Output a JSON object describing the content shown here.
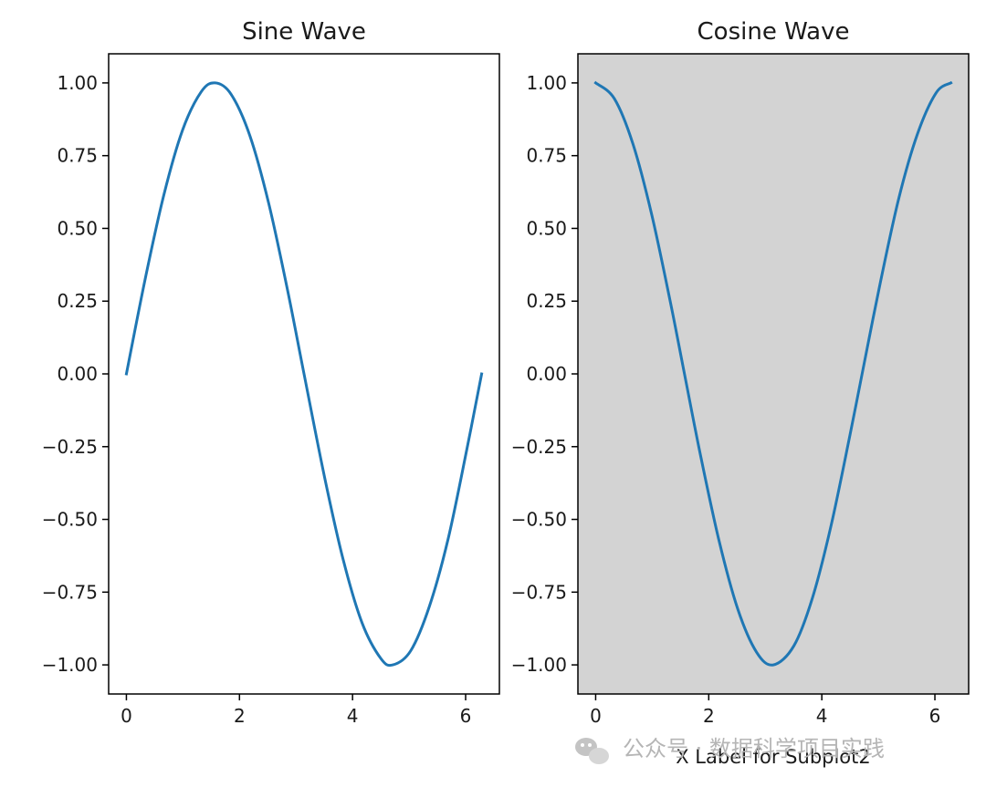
{
  "chart_data": [
    {
      "type": "line",
      "title": "Sine Wave",
      "xlabel": "",
      "ylabel": "",
      "xlim": [
        -0.314,
        6.597
      ],
      "ylim": [
        -1.1,
        1.1
      ],
      "x_ticks": [
        0,
        2,
        4,
        6
      ],
      "x_tick_labels": [
        "0",
        "2",
        "4",
        "6"
      ],
      "y_ticks": [
        1.0,
        0.75,
        0.5,
        0.25,
        0.0,
        -0.25,
        -0.5,
        -0.75,
        -1.0
      ],
      "y_tick_labels": [
        "1.00",
        "0.75",
        "0.50",
        "0.25",
        "0.00",
        "−0.25",
        "−0.50",
        "−0.75",
        "−1.00"
      ],
      "series": [
        {
          "line_color": "#1f77b4",
          "x": [
            0,
            0.3307,
            0.6614,
            0.9921,
            1.3228,
            1.5708,
            1.8535,
            2.1842,
            2.5149,
            2.8456,
            3.1416,
            3.507,
            3.8377,
            4.1684,
            4.4991,
            4.7124,
            5.0298,
            5.3605,
            5.6912,
            6.0219,
            6.2832
          ],
          "y": [
            0,
            0.3247,
            0.6142,
            0.8372,
            0.9694,
            1.0,
            0.9604,
            0.8183,
            0.5878,
            0.2924,
            0.0,
            -0.3569,
            -0.6409,
            -0.8558,
            -0.9779,
            -1.0,
            -0.9511,
            -0.798,
            -0.5665,
            -0.2587,
            0.0
          ]
        }
      ],
      "grid": false,
      "background": "#ffffff"
    },
    {
      "type": "line",
      "title": "Cosine Wave",
      "xlabel": "X Label for Subplot2",
      "ylabel": "",
      "xlim": [
        -0.314,
        6.597
      ],
      "ylim": [
        -1.1,
        1.1
      ],
      "x_ticks": [
        0,
        2,
        4,
        6
      ],
      "x_tick_labels": [
        "0",
        "2",
        "4",
        "6"
      ],
      "y_ticks": [
        1.0,
        0.75,
        0.5,
        0.25,
        0.0,
        -0.25,
        -0.5,
        -0.75,
        -1.0
      ],
      "y_tick_labels": [
        "1.00",
        "0.75",
        "0.50",
        "0.25",
        "0.00",
        "−0.25",
        "−0.50",
        "−0.75",
        "−1.00"
      ],
      "series": [
        {
          "line_color": "#1f77b4",
          "x": [
            0,
            0.3307,
            0.6614,
            0.9921,
            1.3228,
            1.5708,
            1.8535,
            2.1842,
            2.5149,
            2.8456,
            3.1416,
            3.507,
            3.8377,
            4.1684,
            4.4991,
            4.7124,
            5.0298,
            5.3605,
            5.6912,
            6.0219,
            6.2832
          ],
          "y": [
            1.0,
            0.9458,
            0.7891,
            0.5469,
            0.2455,
            0.0,
            -0.2788,
            -0.5748,
            -0.809,
            -0.9563,
            -1.0,
            -0.9341,
            -0.7676,
            -0.5173,
            -0.2091,
            0.0,
            0.309,
            0.6026,
            0.8241,
            0.966,
            1.0
          ]
        }
      ],
      "grid": false,
      "background": "#d3d3d3"
    }
  ],
  "watermark": {
    "text": "公众号 · 数据科学项目实践",
    "icon": "wechat-icon"
  }
}
